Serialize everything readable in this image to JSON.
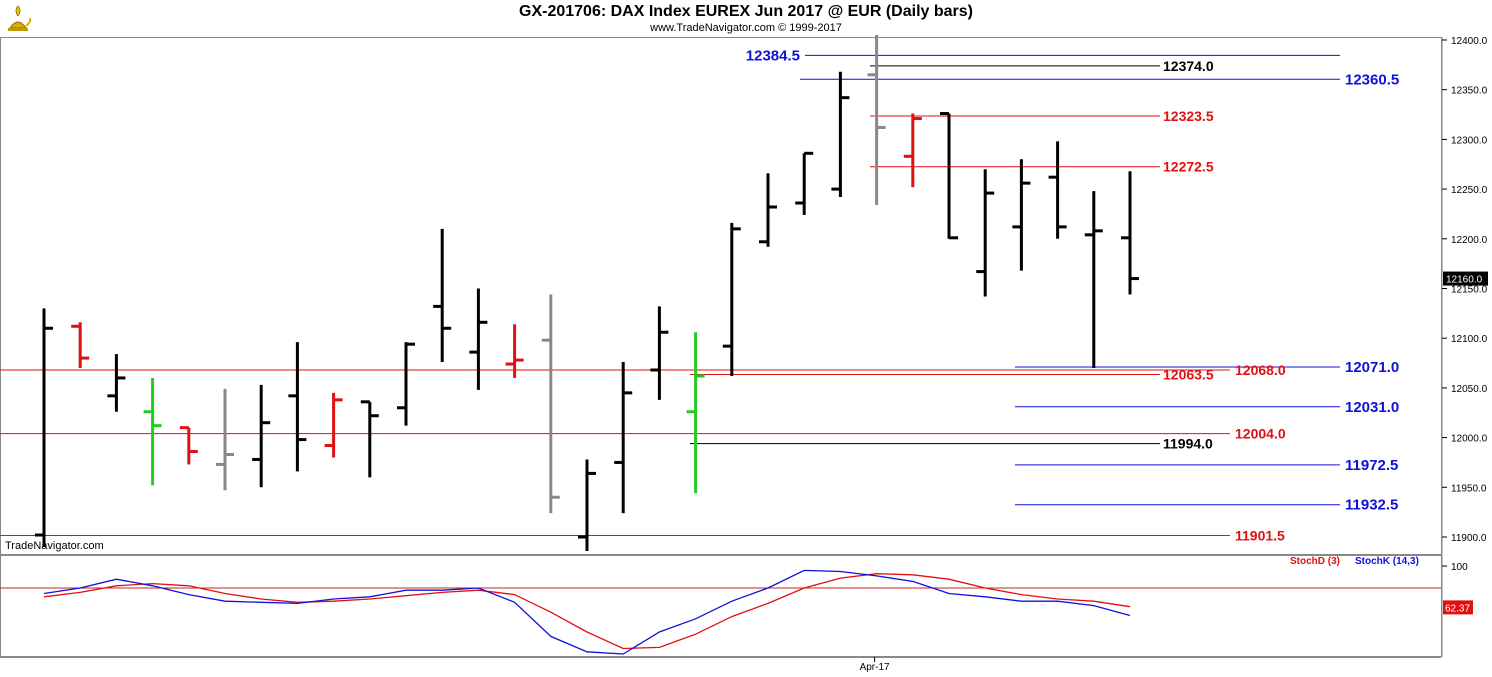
{
  "header": {
    "title": "GX-201706:  DAX Index EUREX Jun 2017 @ EUR  (Daily bars)",
    "copyright": "www.TradeNavigator.com © 1999-2017",
    "watermark": "TradeNavigator.com",
    "logo_icon": "genie-lamp-icon"
  },
  "colors": {
    "up": "#000000",
    "down_red": "#e01010",
    "neutral_gray": "#888888",
    "green": "#22cc22",
    "level_blue": "#1010dd",
    "level_red": "#e01010",
    "stoch_d": "#e01010",
    "stoch_k": "#1010dd"
  },
  "chart_data": [
    {
      "type": "ohlc",
      "title": "GX-201706:  DAX Index EUREX Jun 2017 @ EUR  (Daily bars)",
      "ylim": [
        11880,
        12405
      ],
      "yticks": [
        "12400.0",
        "12350.0",
        "12300.0",
        "12250.0",
        "12200.0",
        "12150.0",
        "12100.0",
        "12050.0",
        "12000.0",
        "11950.0",
        "11900.0"
      ],
      "xtick_label": "Apr-17",
      "last_price": "12160.0",
      "bars": [
        {
          "open": 11902,
          "high": 12130,
          "low": 11890,
          "close": 12110,
          "color": "black"
        },
        {
          "open": 12112,
          "high": 12116,
          "low": 12070,
          "close": 12080,
          "color": "red"
        },
        {
          "open": 12042,
          "high": 12084,
          "low": 12026,
          "close": 12060,
          "color": "black"
        },
        {
          "open": 12026,
          "high": 12060,
          "low": 11952,
          "close": 12012,
          "color": "green"
        },
        {
          "open": 12010,
          "high": 12010,
          "low": 11973,
          "close": 11986,
          "color": "red"
        },
        {
          "open": 11973,
          "high": 12049,
          "low": 11947,
          "close": 11983,
          "color": "gray"
        },
        {
          "open": 11978,
          "high": 12053,
          "low": 11950,
          "close": 12015,
          "color": "black"
        },
        {
          "open": 12042,
          "high": 12096,
          "low": 11966,
          "close": 11998,
          "color": "black"
        },
        {
          "open": 11992,
          "high": 12045,
          "low": 11980,
          "close": 12038,
          "color": "red"
        },
        {
          "open": 12036,
          "high": 12036,
          "low": 11960,
          "close": 12022,
          "color": "black"
        },
        {
          "open": 12030,
          "high": 12096,
          "low": 12012,
          "close": 12094,
          "color": "black"
        },
        {
          "open": 12132,
          "high": 12210,
          "low": 12076,
          "close": 12110,
          "color": "black"
        },
        {
          "open": 12086,
          "high": 12150,
          "low": 12048,
          "close": 12116,
          "color": "black"
        },
        {
          "open": 12074,
          "high": 12114,
          "low": 12060,
          "close": 12078,
          "color": "red"
        },
        {
          "open": 12098,
          "high": 12144,
          "low": 11924,
          "close": 11940,
          "color": "gray"
        },
        {
          "open": 11900,
          "high": 11978,
          "low": 11885,
          "close": 11964,
          "color": "black"
        },
        {
          "open": 11975,
          "high": 12076,
          "low": 11924,
          "close": 12045,
          "color": "black"
        },
        {
          "open": 12068,
          "high": 12132,
          "low": 12038,
          "close": 12106,
          "color": "black"
        },
        {
          "open": 12026,
          "high": 12106,
          "low": 11944,
          "close": 12062,
          "color": "green"
        },
        {
          "open": 12092,
          "high": 12216,
          "low": 12062,
          "close": 12210,
          "color": "black"
        },
        {
          "open": 12197,
          "high": 12266,
          "low": 12192,
          "close": 12232,
          "color": "black"
        },
        {
          "open": 12236,
          "high": 12286,
          "low": 12224,
          "close": 12286,
          "color": "black"
        },
        {
          "open": 12250,
          "high": 12368,
          "low": 12242,
          "close": 12342,
          "color": "black"
        },
        {
          "open": 12365,
          "high": 12405,
          "low": 12234,
          "close": 12312,
          "color": "gray"
        },
        {
          "open": 12283,
          "high": 12326,
          "low": 12252,
          "close": 12321,
          "color": "red"
        },
        {
          "open": 12326,
          "high": 12326,
          "low": 12200,
          "close": 12201,
          "color": "black"
        },
        {
          "open": 12167,
          "high": 12270,
          "low": 12142,
          "close": 12246,
          "color": "black"
        },
        {
          "open": 12212,
          "high": 12280,
          "low": 12168,
          "close": 12256,
          "color": "black"
        },
        {
          "open": 12262,
          "high": 12298,
          "low": 12200,
          "close": 12212,
          "color": "black"
        },
        {
          "open": 12204,
          "high": 12248,
          "low": 12070,
          "close": 12208,
          "color": "black"
        },
        {
          "open": 12201,
          "high": 12268,
          "low": 12144,
          "close": 12160,
          "color": "black"
        }
      ],
      "levels": [
        {
          "value": 12384.5,
          "label": "12384.5",
          "color": "blue",
          "label_side": "left"
        },
        {
          "value": 12374.0,
          "label": "12374.0",
          "color": "black",
          "label_side": "mid"
        },
        {
          "value": 12360.5,
          "label": "12360.5",
          "color": "blue",
          "label_side": "right"
        },
        {
          "value": 12323.5,
          "label": "12323.5",
          "color": "red",
          "label_side": "mid"
        },
        {
          "value": 12272.5,
          "label": "12272.5",
          "color": "red",
          "label_side": "mid"
        },
        {
          "value": 12071.0,
          "label": "12071.0",
          "color": "blue",
          "label_side": "right"
        },
        {
          "value": 12068.0,
          "label": "12068.0",
          "color": "red",
          "label_side": "right2"
        },
        {
          "value": 12063.5,
          "label": "12063.5",
          "color": "red",
          "label_side": "mid"
        },
        {
          "value": 12031.0,
          "label": "12031.0",
          "color": "blue",
          "label_side": "right"
        },
        {
          "value": 12004.0,
          "label": "12004.0",
          "color": "red",
          "label_side": "right2"
        },
        {
          "value": 11994.0,
          "label": "11994.0",
          "color": "black",
          "label_side": "mid"
        },
        {
          "value": 11972.5,
          "label": "11972.5",
          "color": "blue",
          "label_side": "right"
        },
        {
          "value": 11932.5,
          "label": "11932.5",
          "color": "blue",
          "label_side": "right"
        },
        {
          "value": 11901.5,
          "label": "11901.5",
          "color": "red",
          "label_side": "right2"
        }
      ]
    },
    {
      "type": "line",
      "title": "",
      "ylim": [
        0,
        100
      ],
      "ytick_label": "100",
      "reference_line": 80,
      "last_d": "62.37",
      "legend": [
        "StochD (3)",
        "StochK (14,3)"
      ],
      "series": [
        {
          "name": "StochD (3)",
          "color": "red",
          "values": [
            72,
            76,
            82,
            84,
            82,
            75,
            70,
            67,
            68,
            70,
            73,
            76,
            78,
            74,
            58,
            40,
            25,
            26,
            38,
            54,
            66,
            80,
            89,
            93,
            92,
            88,
            80,
            74,
            70,
            68,
            63
          ]
        },
        {
          "name": "StochK (14,3)",
          "color": "blue",
          "values": [
            75,
            80,
            88,
            82,
            74,
            68,
            67,
            66,
            70,
            72,
            78,
            78,
            80,
            67,
            36,
            22,
            20,
            40,
            52,
            68,
            80,
            96,
            95,
            91,
            86,
            75,
            72,
            68,
            68,
            64,
            55
          ]
        }
      ]
    }
  ]
}
